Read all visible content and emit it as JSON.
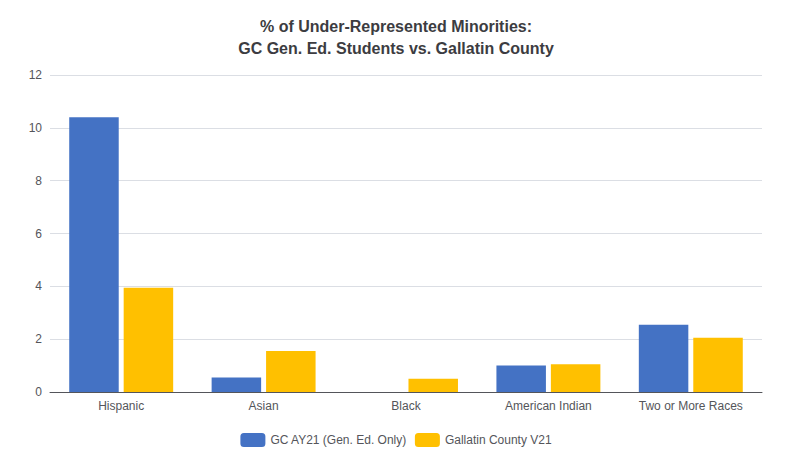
{
  "chart_data": {
    "type": "bar",
    "title": "% of Under-Represented Minorities:\nGC Gen. Ed. Students vs. Gallatin County",
    "categories": [
      "Hispanic",
      "Asian",
      "Black",
      "American Indian",
      "Two or More Races"
    ],
    "series": [
      {
        "name": "GC AY21 (Gen. Ed. Only)",
        "color": "#4472C4",
        "values": [
          10.4,
          0.55,
          0.0,
          1.0,
          2.55
        ]
      },
      {
        "name": "Gallatin County V21",
        "color": "#FFC000",
        "values": [
          3.95,
          1.55,
          0.5,
          1.05,
          2.05
        ]
      }
    ],
    "ylim": [
      0,
      12
    ],
    "yticks": [
      0,
      2,
      4,
      6,
      8,
      10,
      12
    ],
    "grid": true,
    "legend": "bottom"
  }
}
